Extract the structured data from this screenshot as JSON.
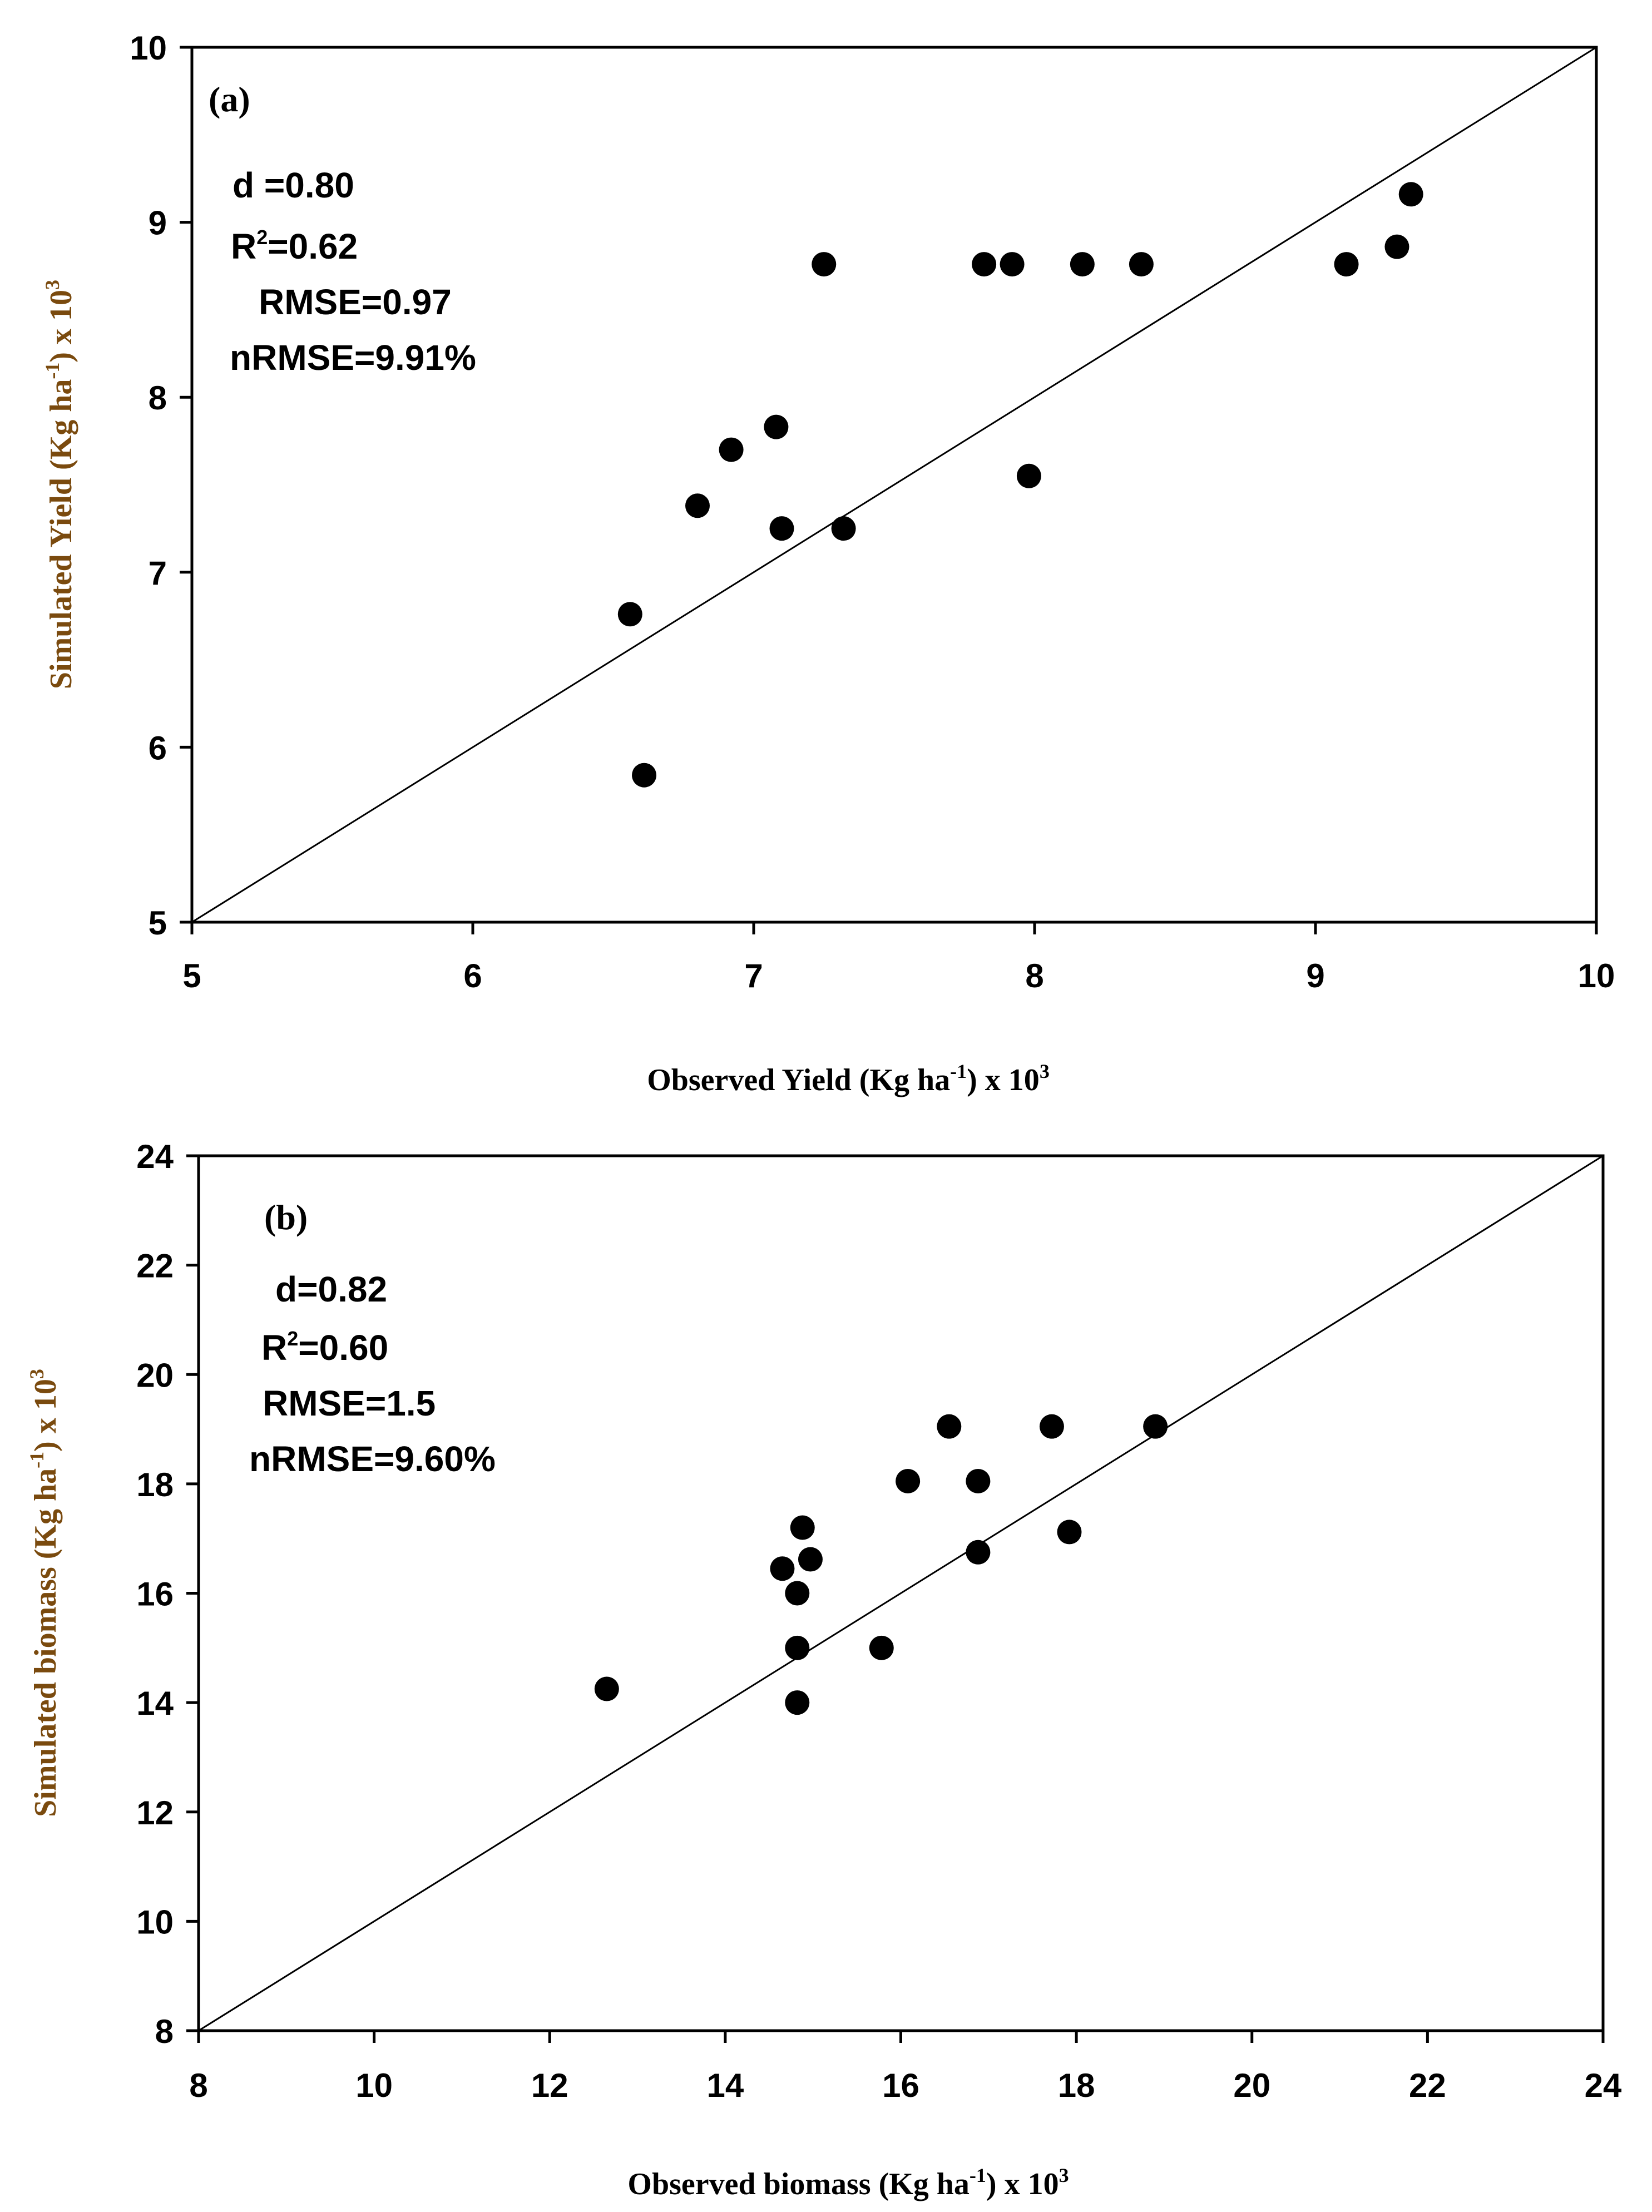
{
  "colors": {
    "marker": "#000000",
    "ylabel": "#7a4a0e",
    "axis": "#000000"
  },
  "chart_data": [
    {
      "type": "scatter",
      "panel_label": "(a)",
      "xlabel": {
        "main": "Observed Yield (Kg ha",
        "sup1": "-1",
        "mid": ") x 10",
        "sup2": "3"
      },
      "ylabel": {
        "main": "Simulated Yield (Kg ha",
        "sup1": "-1",
        "mid": ") x 10",
        "sup2": "3"
      },
      "xlim": [
        5,
        10
      ],
      "ylim": [
        5,
        10
      ],
      "xticks": [
        5,
        6,
        7,
        8,
        9,
        10
      ],
      "yticks": [
        5,
        6,
        7,
        8,
        9,
        10
      ],
      "reference_line": "1:1",
      "stats": {
        "d": "d =0.80",
        "r2_prefix": "R",
        "r2_sup": "2",
        "r2_value": "=0.62",
        "rmse": "RMSE=0.97",
        "nrmse": "nRMSE=9.91%"
      },
      "points": [
        {
          "x": 6.56,
          "y": 6.76
        },
        {
          "x": 6.61,
          "y": 5.84
        },
        {
          "x": 6.8,
          "y": 7.38
        },
        {
          "x": 6.92,
          "y": 7.7
        },
        {
          "x": 7.08,
          "y": 7.83
        },
        {
          "x": 7.1,
          "y": 7.25
        },
        {
          "x": 7.25,
          "y": 8.76
        },
        {
          "x": 7.32,
          "y": 7.25
        },
        {
          "x": 7.82,
          "y": 8.76
        },
        {
          "x": 7.92,
          "y": 8.76
        },
        {
          "x": 7.98,
          "y": 7.55
        },
        {
          "x": 8.17,
          "y": 8.76
        },
        {
          "x": 8.38,
          "y": 8.76
        },
        {
          "x": 9.11,
          "y": 8.76
        },
        {
          "x": 9.29,
          "y": 8.86
        },
        {
          "x": 9.34,
          "y": 9.16
        }
      ]
    },
    {
      "type": "scatter",
      "panel_label": "(b)",
      "xlabel": {
        "main": "Observed biomass (Kg ha",
        "sup1": "-1",
        "mid": ") x 10",
        "sup2": "3"
      },
      "ylabel": {
        "main": "Simulated biomass (Kg ha",
        "sup1": "-1",
        "mid": ") x 10",
        "sup2": "3"
      },
      "xlim": [
        8,
        24
      ],
      "ylim": [
        8,
        24
      ],
      "xticks": [
        8,
        10,
        12,
        14,
        16,
        18,
        20,
        22,
        24
      ],
      "yticks": [
        8,
        10,
        12,
        14,
        16,
        18,
        20,
        22,
        24
      ],
      "reference_line": "1:1",
      "stats": {
        "d": "d=0.82",
        "r2_prefix": "R",
        "r2_sup": "2",
        "r2_value": "=0.60",
        "rmse": "RMSE=1.5",
        "nrmse": "nRMSE=9.60%"
      },
      "points": [
        {
          "x": 12.65,
          "y": 14.25
        },
        {
          "x": 14.65,
          "y": 16.45
        },
        {
          "x": 14.82,
          "y": 16.0
        },
        {
          "x": 14.82,
          "y": 15.0
        },
        {
          "x": 14.82,
          "y": 14.0
        },
        {
          "x": 14.88,
          "y": 17.2
        },
        {
          "x": 14.97,
          "y": 16.62
        },
        {
          "x": 15.78,
          "y": 15.0
        },
        {
          "x": 16.08,
          "y": 18.05
        },
        {
          "x": 16.55,
          "y": 19.05
        },
        {
          "x": 16.88,
          "y": 18.05
        },
        {
          "x": 16.88,
          "y": 16.75
        },
        {
          "x": 17.72,
          "y": 19.05
        },
        {
          "x": 17.92,
          "y": 17.12
        },
        {
          "x": 18.9,
          "y": 19.05
        }
      ]
    }
  ]
}
